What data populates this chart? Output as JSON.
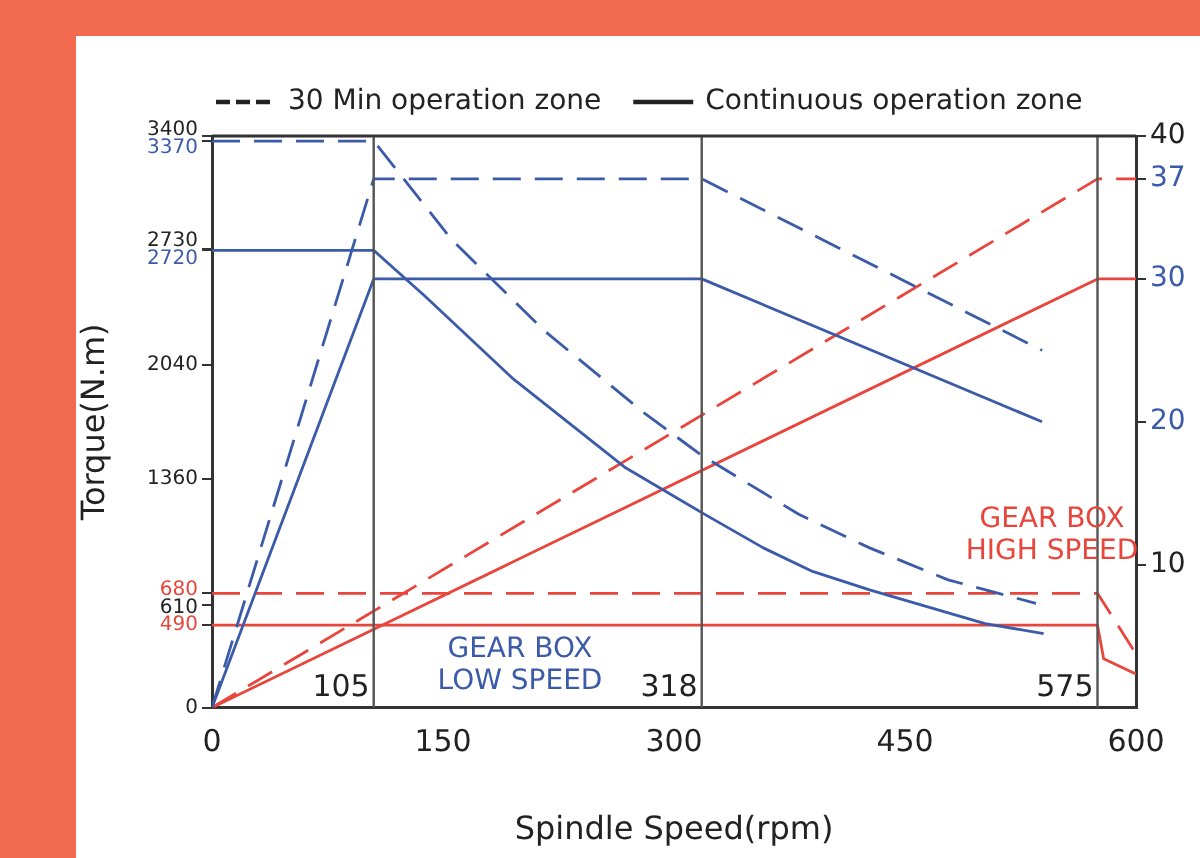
{
  "chart_data": {
    "type": "line",
    "xlabel": "Spindle Speed(rpm)",
    "ylabel": "Torque(N.m)",
    "annotations": [
      "30 Min operation zone",
      "Continuous operation zone",
      "GEAR BOX LOW SPEED",
      "GEAR BOX HIGH SPEED"
    ],
    "xlim": [
      0,
      600
    ],
    "xticks": [
      0,
      150,
      300,
      450,
      600
    ],
    "ylim": [
      0,
      3400
    ],
    "yticks": [
      0,
      490,
      610,
      680,
      1360,
      2040,
      2720,
      2730,
      3370,
      3400
    ],
    "y2lim": [
      0,
      40
    ],
    "y2ticks": [
      10,
      20,
      30,
      37,
      40
    ],
    "marker": "none",
    "grid": false,
    "ref_lines": [
      {
        "axis": "x",
        "value": 105,
        "label": "105",
        "color": "#555555"
      },
      {
        "axis": "x",
        "value": 318,
        "label": "318",
        "color": "#555555"
      },
      {
        "axis": "x",
        "value": 575,
        "label": "575",
        "color": "#555555"
      }
    ],
    "series": [
      {
        "color": "#3b5ba9",
        "line_style": "dashed",
        "x": [
          0,
          105,
          156,
          216,
          281,
          318,
          381,
          427,
          478,
          535
        ],
        "values": [
          3370,
          3370,
          2780,
          2240,
          1750,
          1500,
          1150,
          950,
          760,
          620
        ]
      },
      {
        "color": "#3b5ba9",
        "line_style": "solid",
        "x": [
          0,
          105,
          138,
          195,
          268,
          318,
          358,
          390,
          427,
          502,
          540
        ],
        "values": [
          2720,
          2720,
          2450,
          1960,
          1430,
          1160,
          950,
          810,
          700,
          500,
          440
        ]
      },
      {
        "color": "#3b5ba9",
        "line_style": "dashed",
        "axis": "y2",
        "x": [
          0,
          105,
          318,
          539
        ],
        "values": [
          0,
          37,
          37,
          25
        ]
      },
      {
        "color": "#3b5ba9",
        "line_style": "solid",
        "axis": "y2",
        "x": [
          0,
          105,
          318,
          539
        ],
        "values": [
          0,
          30,
          30,
          20
        ]
      },
      {
        "color": "#e8453c",
        "line_style": "dashed",
        "x": [
          0,
          575,
          600
        ],
        "values": [
          680,
          680,
          320
        ]
      },
      {
        "color": "#e8453c",
        "line_style": "solid",
        "x": [
          0,
          575,
          579,
          600
        ],
        "values": [
          490,
          490,
          290,
          200
        ]
      },
      {
        "color": "#e8453c",
        "line_style": "dashed",
        "axis": "y2",
        "x": [
          0,
          575,
          600
        ],
        "values": [
          0,
          37,
          37
        ]
      },
      {
        "color": "#e8453c",
        "line_style": "solid",
        "axis": "y2",
        "x": [
          0,
          575,
          600
        ],
        "values": [
          0,
          30,
          30
        ]
      }
    ]
  }
}
